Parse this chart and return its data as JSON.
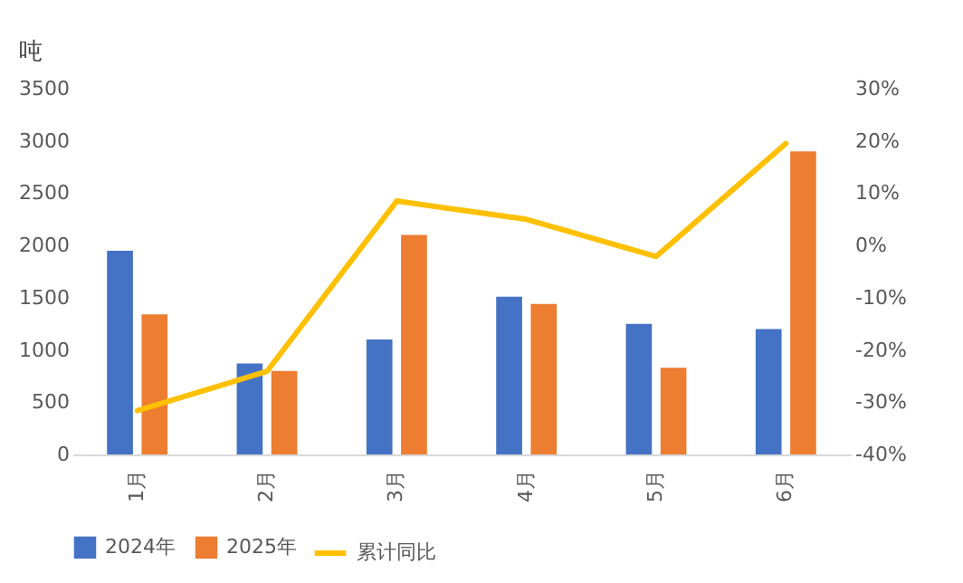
{
  "chart_data": {
    "type": "bar",
    "ylabel": "吨",
    "categories": [
      "1月",
      "2月",
      "3月",
      "4月",
      "5月",
      "6月"
    ],
    "series": [
      {
        "name": "2024年",
        "color": "#4472c4",
        "values": [
          1950,
          870,
          1100,
          1510,
          1250,
          1200
        ]
      },
      {
        "name": "2025年",
        "color": "#ed7d31",
        "values": [
          1340,
          800,
          2100,
          1440,
          830,
          2900
        ]
      },
      {
        "name": "累计同比",
        "type": "line",
        "axis": "y2",
        "color": "#ffc000",
        "values": [
          -31.6,
          -24.1,
          8.5,
          5,
          -2.1,
          19.5
        ]
      }
    ],
    "ylim": [
      0,
      3500
    ],
    "yticks": [
      0,
      500,
      1000,
      1500,
      2000,
      2500,
      3000,
      3500
    ],
    "y2lim": [
      -40,
      30
    ],
    "y2ticks": [
      {
        "value": -40,
        "label": "-40%"
      },
      {
        "value": -30,
        "label": "-30%"
      },
      {
        "value": -20,
        "label": "-20%"
      },
      {
        "value": -10,
        "label": "-10%"
      },
      {
        "value": 0,
        "label": "0%"
      },
      {
        "value": 10,
        "label": "10%"
      },
      {
        "value": 20,
        "label": "20%"
      },
      {
        "value": 30,
        "label": "30%"
      }
    ],
    "grid": false,
    "legend": "bottom",
    "line_style": "solid",
    "marker": "none"
  }
}
